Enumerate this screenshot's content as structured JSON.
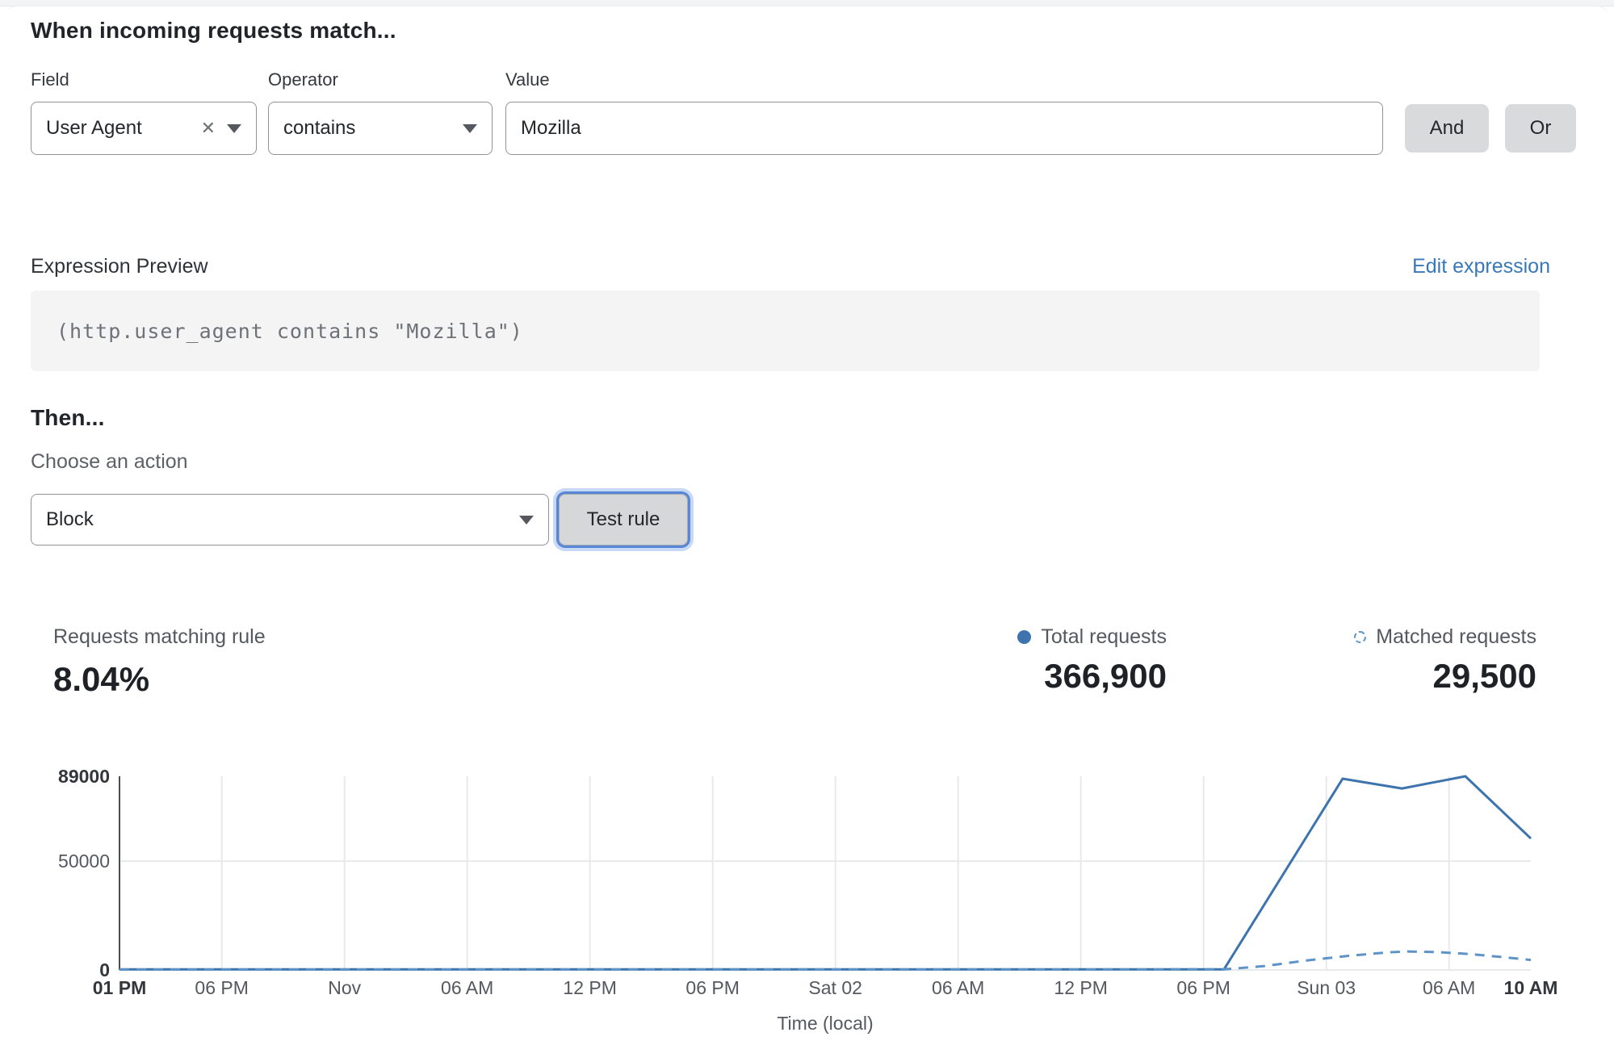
{
  "rule_builder": {
    "heading": "When incoming requests match...",
    "field": {
      "label": "Field",
      "value": "User Agent"
    },
    "operator": {
      "label": "Operator",
      "value": "contains"
    },
    "value": {
      "label": "Value",
      "value": "Mozilla"
    },
    "and_label": "And",
    "or_label": "Or"
  },
  "expression": {
    "label": "Expression Preview",
    "edit_link": "Edit expression",
    "code": "(http.user_agent contains \"Mozilla\")"
  },
  "action": {
    "heading": "Then...",
    "label": "Choose an action",
    "selected": "Block",
    "test_button": "Test rule"
  },
  "stats": {
    "match_label": "Requests matching rule",
    "match_value": "8.04%",
    "legend": [
      {
        "label": "Total requests",
        "value": "366,900",
        "marker": "solid-dot"
      },
      {
        "label": "Matched requests",
        "value": "29,500",
        "marker": "dashed-circle"
      }
    ]
  },
  "colors": {
    "accent_link": "#3878ba",
    "line_total": "#3d74ad",
    "line_matched": "#5e93c7",
    "grid": "#e8e9ea",
    "axis": "#4a4e54",
    "focus_ring": "#5282d4"
  },
  "chart_data": {
    "type": "line",
    "title": "",
    "xlabel": "Time (local)",
    "ylabel": "",
    "ylim": [
      0,
      89000
    ],
    "x_range_hours": 69,
    "grid": "vertical gridlines at each x tick, horizontal gridline at 50000 and baseline 0",
    "legend_position": "top-right above chart",
    "y_ticks": [
      {
        "label": "0",
        "value": 0,
        "bold": true
      },
      {
        "label": "50000",
        "value": 50000,
        "bold": false
      },
      {
        "label": "89000",
        "value": 89000,
        "bold": true
      }
    ],
    "x_ticks": [
      {
        "label": "01 PM",
        "hour": 0,
        "bold": true
      },
      {
        "label": "06 PM",
        "hour": 5,
        "bold": false
      },
      {
        "label": "Nov",
        "hour": 11,
        "bold": false
      },
      {
        "label": "06 AM",
        "hour": 17,
        "bold": false
      },
      {
        "label": "12 PM",
        "hour": 23,
        "bold": false
      },
      {
        "label": "06 PM",
        "hour": 29,
        "bold": false
      },
      {
        "label": "Sat 02",
        "hour": 35,
        "bold": false
      },
      {
        "label": "06 AM",
        "hour": 41,
        "bold": false
      },
      {
        "label": "12 PM",
        "hour": 47,
        "bold": false
      },
      {
        "label": "06 PM",
        "hour": 53,
        "bold": false
      },
      {
        "label": "Sun 03",
        "hour": 59,
        "bold": false
      },
      {
        "label": "06 AM",
        "hour": 65,
        "bold": false
      },
      {
        "label": "10 AM",
        "hour": 69,
        "bold": true
      }
    ],
    "series": [
      {
        "name": "Total requests",
        "style": "solid",
        "color": "#3d74ad",
        "points": [
          [
            0,
            300
          ],
          [
            54,
            300
          ],
          [
            59.8,
            87900
          ],
          [
            62.7,
            83400
          ],
          [
            65.8,
            89000
          ],
          [
            69,
            60400
          ]
        ]
      },
      {
        "name": "Matched requests",
        "style": "dashed",
        "color": "#5e93c7",
        "points": [
          [
            0,
            200
          ],
          [
            54,
            250
          ],
          [
            56,
            1800
          ],
          [
            58,
            4300
          ],
          [
            60,
            6400
          ],
          [
            62,
            8100
          ],
          [
            63,
            8500
          ],
          [
            64.5,
            8200
          ],
          [
            66,
            7300
          ],
          [
            67.5,
            6000
          ],
          [
            69,
            4600
          ]
        ]
      }
    ]
  }
}
